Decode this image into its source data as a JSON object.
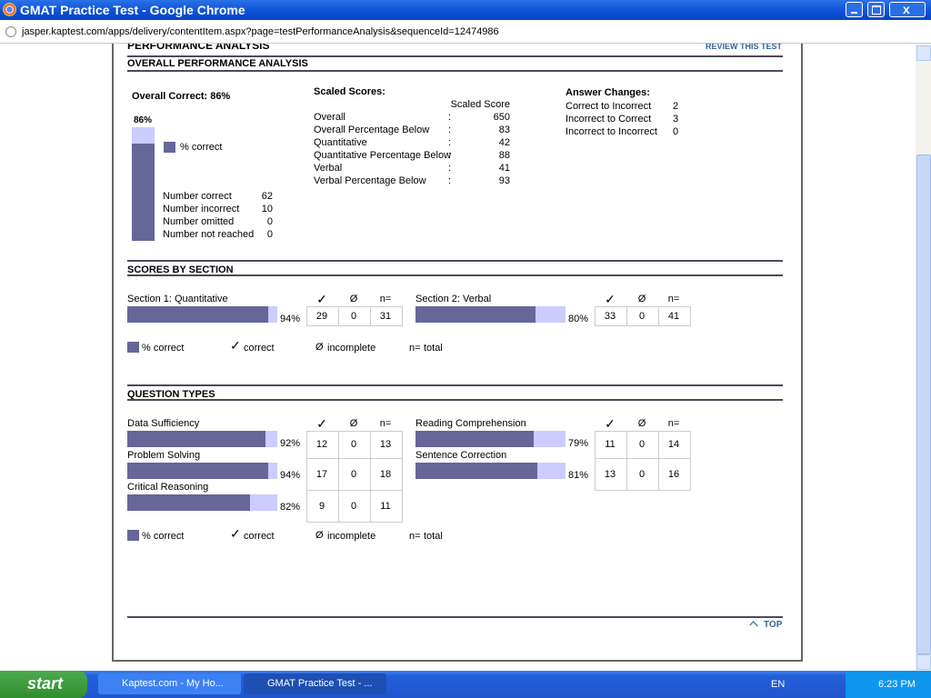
{
  "window": {
    "title": "GMAT Practice Test - Google Chrome",
    "url": "jasper.kaptest.com/apps/delivery/contentItem.aspx?page=testPerformanceAnalysis&sequenceId=12474986"
  },
  "page": {
    "heading": "PERFORMANCE ANALYSIS",
    "review_link": "REVIEW THIS TEST",
    "top_link": "TOP"
  },
  "overall": {
    "title": "OVERALL PERFORMANCE ANALYSIS",
    "correct_label": "Overall Correct: 86%",
    "percent": 86,
    "percent_label": "86%",
    "counts": [
      {
        "label": "Number correct",
        "value": 62
      },
      {
        "label": "Number incorrect",
        "value": 10
      },
      {
        "label": "Number omitted",
        "value": 0
      },
      {
        "label": "Number not reached",
        "value": 0
      }
    ]
  },
  "scaled_scores": {
    "title": "Scaled Scores:",
    "column": "Scaled Score",
    "separator": ":",
    "rows": [
      {
        "label": "Overall",
        "value": 650
      },
      {
        "label": "Overall Percentage Below",
        "value": 83
      },
      {
        "label": "Quantitative",
        "value": 42
      },
      {
        "label": "Quantitative Percentage Below",
        "value": 88
      },
      {
        "label": "Verbal",
        "value": 41
      },
      {
        "label": "Verbal Percentage Below",
        "value": 93
      }
    ]
  },
  "answer_changes": {
    "title": "Answer Changes:",
    "rows": [
      {
        "label": "Correct to Incorrect",
        "value": 2
      },
      {
        "label": "Incorrect to Correct",
        "value": 3
      },
      {
        "label": "Incorrect to Incorrect",
        "value": 0
      }
    ]
  },
  "symbols": {
    "correct": "✓",
    "incomplete": "Ø",
    "total": "n="
  },
  "legend": {
    "percent": "% correct",
    "correct": "correct",
    "incomplete": "incomplete",
    "total": "total"
  },
  "sections": {
    "title": "SCORES BY SECTION",
    "items": [
      {
        "name": "Section 1: Quantitative",
        "percent": 94,
        "percent_label": "94%",
        "correct": 29,
        "incomplete": 0,
        "total": 31
      },
      {
        "name": "Section 2: Verbal",
        "percent": 80,
        "percent_label": "80%",
        "correct": 33,
        "incomplete": 0,
        "total": 41
      }
    ]
  },
  "question_types": {
    "title": "QUESTION TYPES",
    "left": [
      {
        "name": "Data Sufficiency",
        "percent": 92,
        "percent_label": "92%",
        "correct": 12,
        "incomplete": 0,
        "total": 13
      },
      {
        "name": "Problem Solving",
        "percent": 94,
        "percent_label": "94%",
        "correct": 17,
        "incomplete": 0,
        "total": 18
      },
      {
        "name": "Critical Reasoning",
        "percent": 82,
        "percent_label": "82%",
        "correct": 9,
        "incomplete": 0,
        "total": 11
      }
    ],
    "right": [
      {
        "name": "Reading Comprehension",
        "percent": 79,
        "percent_label": "79%",
        "correct": 11,
        "incomplete": 0,
        "total": 14
      },
      {
        "name": "Sentence Correction",
        "percent": 81,
        "percent_label": "81%",
        "correct": 13,
        "incomplete": 0,
        "total": 16
      }
    ]
  },
  "taskbar": {
    "start": "start",
    "tasks": [
      "Kaptest.com - My Ho...",
      "GMAT Practice Test - ..."
    ],
    "language": "EN",
    "clock": "6:23 PM"
  }
}
